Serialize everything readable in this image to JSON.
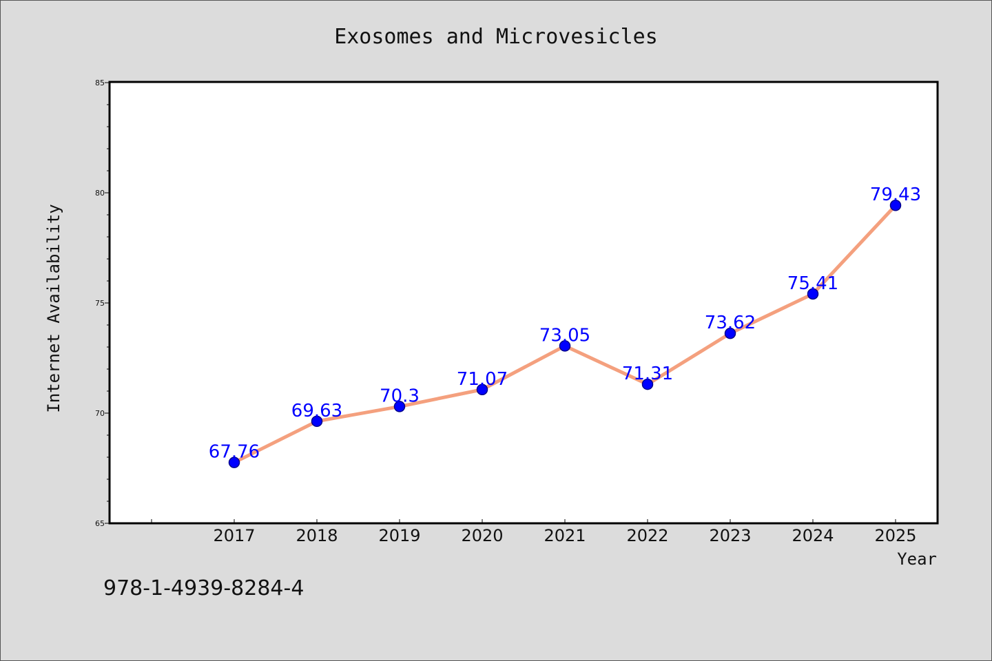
{
  "chart_data": {
    "type": "line",
    "title": "Exosomes and Microvesicles",
    "xlabel": "Year",
    "ylabel": "Internet Availability",
    "categories": [
      "2017",
      "2018",
      "2019",
      "2020",
      "2021",
      "2022",
      "2023",
      "2024",
      "2025"
    ],
    "values": [
      67.76,
      69.63,
      70.3,
      71.07,
      73.05,
      71.31,
      73.62,
      75.41,
      79.43
    ],
    "data_labels": [
      "67.76",
      "69.63",
      "70.3",
      "71.07",
      "73.05",
      "71.31",
      "73.62",
      "75.41",
      "79.43"
    ],
    "ylim": [
      65,
      85
    ],
    "yticks": [
      "65",
      "70",
      "75",
      "80",
      "85"
    ],
    "grid": false,
    "legend": "none",
    "colors": {
      "line": "#f4a07e",
      "marker": "#0000ff",
      "marker_edge": "#00008b",
      "label": "#0000ff",
      "background": "#dcdcdc",
      "plot_background": "#ffffff"
    }
  },
  "footer_text": "978-1-4939-8284-4"
}
